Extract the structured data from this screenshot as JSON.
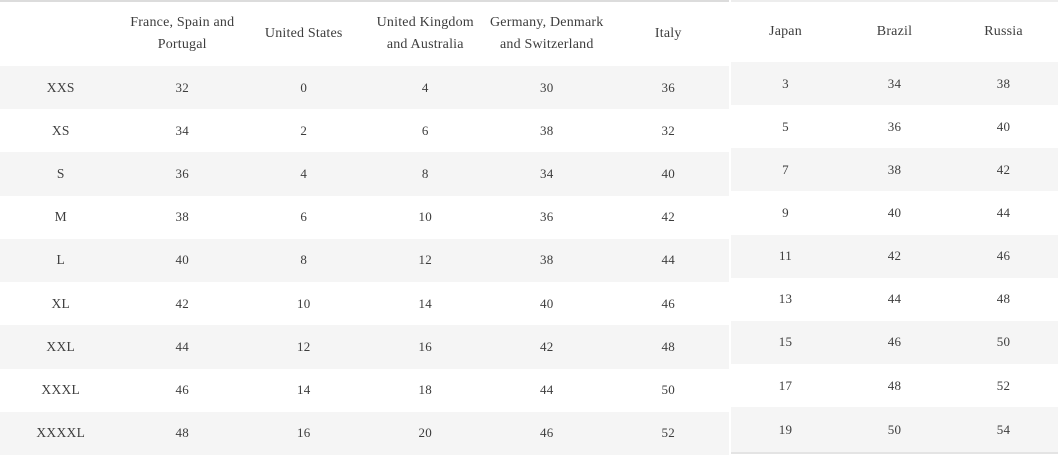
{
  "tables": {
    "left": {
      "headers": [
        "",
        "France, Spain and Portugal",
        "United States",
        "United Kingdom and Australia",
        "Germany, Denmark and Switzerland",
        "Italy"
      ],
      "rows": [
        {
          "size": "XXS",
          "values": [
            "32",
            "0",
            "4",
            "30",
            "36"
          ]
        },
        {
          "size": "XS",
          "values": [
            "34",
            "2",
            "6",
            "38",
            "32"
          ]
        },
        {
          "size": "S",
          "values": [
            "36",
            "4",
            "8",
            "34",
            "40"
          ]
        },
        {
          "size": "M",
          "values": [
            "38",
            "6",
            "10",
            "36",
            "42"
          ]
        },
        {
          "size": "L",
          "values": [
            "40",
            "8",
            "12",
            "38",
            "44"
          ]
        },
        {
          "size": "XL",
          "values": [
            "42",
            "10",
            "14",
            "40",
            "46"
          ]
        },
        {
          "size": "XXL",
          "values": [
            "44",
            "12",
            "16",
            "42",
            "48"
          ]
        },
        {
          "size": "XXXL",
          "values": [
            "46",
            "14",
            "18",
            "44",
            "50"
          ]
        },
        {
          "size": "XXXXL",
          "values": [
            "48",
            "16",
            "20",
            "46",
            "52"
          ]
        }
      ]
    },
    "right": {
      "headers": [
        "Japan",
        "Brazil",
        "Russia"
      ],
      "rows": [
        [
          "3",
          "34",
          "38"
        ],
        [
          "5",
          "36",
          "40"
        ],
        [
          "7",
          "38",
          "42"
        ],
        [
          "9",
          "40",
          "44"
        ],
        [
          "11",
          "42",
          "46"
        ],
        [
          "13",
          "44",
          "48"
        ],
        [
          "15",
          "46",
          "50"
        ],
        [
          "17",
          "48",
          "52"
        ],
        [
          "19",
          "50",
          "54"
        ]
      ]
    },
    "colors": {
      "stripe": "#f5f5f5",
      "text": "#3d3d3d",
      "left_top_border": "#dcdcdc",
      "right_top_border": "#ededed",
      "right_bottom_border": "#e4e4e4",
      "page_bg": "#ffffff"
    }
  }
}
